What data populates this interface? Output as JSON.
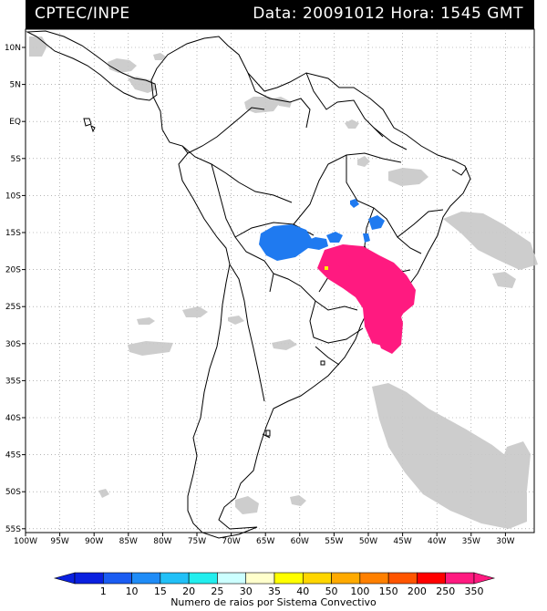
{
  "header": {
    "source": "CPTEC/INPE",
    "datetime": "Data: 20091012 Hora: 1545 GMT"
  },
  "map": {
    "lat_labels": [
      "10N",
      "5N",
      "EQ",
      "5S",
      "10S",
      "15S",
      "20S",
      "25S",
      "30S",
      "35S",
      "40S",
      "45S",
      "50S",
      "55S"
    ],
    "lon_labels": [
      "100W",
      "95W",
      "90W",
      "85W",
      "80W",
      "75W",
      "70W",
      "65W",
      "60W",
      "55W",
      "50W",
      "45W",
      "40W",
      "35W",
      "30W"
    ],
    "cloud_color": "#c8c8c8",
    "grid": "dotted"
  },
  "colorbar": {
    "labels": [
      "1",
      "10",
      "15",
      "20",
      "25",
      "30",
      "35",
      "40",
      "50",
      "100",
      "150",
      "200",
      "250",
      "350"
    ],
    "colors": [
      "#0a20e0",
      "#1a5cf2",
      "#1f8cf7",
      "#21c0f7",
      "#22eeee",
      "#ccffff",
      "#ffffcc",
      "#ffff00",
      "#ffd600",
      "#ffaa00",
      "#ff8000",
      "#ff5500",
      "#ff0000",
      "#ff1a80"
    ],
    "title": "Numero de raios por Sistema Convectivo"
  }
}
